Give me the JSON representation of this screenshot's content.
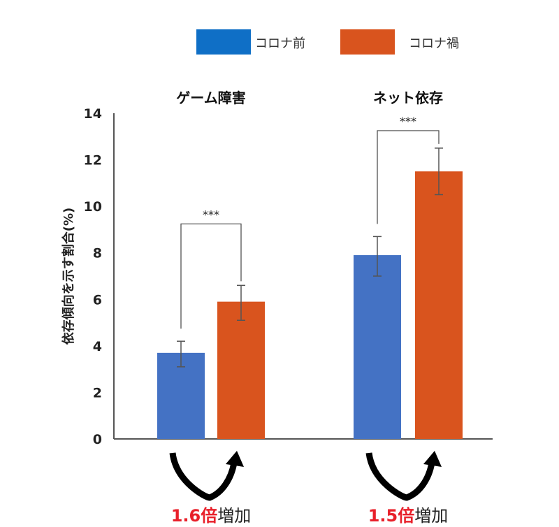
{
  "chart_data": {
    "type": "bar",
    "title": "",
    "ylabel": "依存傾向を示す割合(%)",
    "xlabel": "",
    "ylim": [
      0,
      14
    ],
    "yticks": [
      0,
      2,
      4,
      6,
      8,
      10,
      12,
      14
    ],
    "grid": false,
    "legend_placement": "top",
    "categories": [
      "ゲーム障害",
      "ネット依存"
    ],
    "series": [
      {
        "name": "コロナ前",
        "color": "#4472c4",
        "legend_color": "#0f6fc6",
        "values": [
          3.7,
          7.9
        ],
        "error_low": [
          3.1,
          7.0
        ],
        "error_high": [
          4.2,
          8.7
        ]
      },
      {
        "name": "コロナ禍",
        "color": "#d9541e",
        "legend_color": "#d9541e",
        "values": [
          5.9,
          11.5
        ],
        "error_low": [
          5.1,
          10.5
        ],
        "error_high": [
          6.6,
          12.5
        ]
      }
    ],
    "significance": [
      "***",
      "***"
    ],
    "annotations": [
      {
        "ratio": "1.6倍",
        "suffix": "増加"
      },
      {
        "ratio": "1.5倍",
        "suffix": "増加"
      }
    ],
    "annotation_color": "#e8202a"
  }
}
